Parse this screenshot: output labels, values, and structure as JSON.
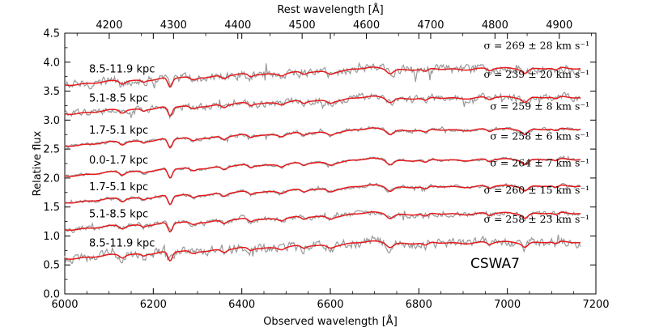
{
  "chart_data": {
    "type": "line",
    "object_name": "CSWA7",
    "xlabel": "Observed wavelength [Å]",
    "ylabel": "Relative flux",
    "top_xlabel": "Rest wavelength [Å]",
    "xlim": [
      6000,
      7200
    ],
    "ylim": [
      0.0,
      4.5
    ],
    "x_ticks": [
      "6000",
      "6200",
      "6400",
      "6600",
      "6800",
      "7000",
      "7200"
    ],
    "y_ticks": [
      "0.0",
      "0.5",
      "1.0",
      "1.5",
      "2.0",
      "2.5",
      "3.0",
      "3.5",
      "4.0",
      "4.5"
    ],
    "top_ticks": [
      "4200",
      "4300",
      "4400",
      "4500",
      "4600",
      "4700",
      "4800",
      "4900"
    ],
    "rest_to_observed_factor": 1.4525,
    "series_colors": {
      "observed": "#999999",
      "model": "#e41a1c"
    },
    "spectra": [
      {
        "region": "8.5-11.9 kpc",
        "sigma": "σ = 269 ± 28 km s⁻¹",
        "offset": 3.55,
        "noise": 0.07
      },
      {
        "region": "5.1-8.5 kpc",
        "sigma": "σ = 239 ± 20 km s⁻¹",
        "offset": 3.05,
        "noise": 0.05
      },
      {
        "region": "1.7-5.1 kpc",
        "sigma": "σ = 259 ± 8 km s⁻¹",
        "offset": 2.5,
        "noise": 0.025
      },
      {
        "region": "0.0-1.7 kpc",
        "sigma": "σ = 258 ± 6 km s⁻¹",
        "offset": 1.98,
        "noise": 0.02
      },
      {
        "region": "1.7-5.1 kpc",
        "sigma": "σ = 264 ± 7 km s⁻¹",
        "offset": 1.52,
        "noise": 0.025
      },
      {
        "region": "5.1-8.5 kpc",
        "sigma": "σ = 260 ± 15 km s⁻¹",
        "offset": 1.05,
        "noise": 0.04
      },
      {
        "region": "8.5-11.9 kpc",
        "sigma": "σ = 258 ± 23 km s⁻¹",
        "offset": 0.55,
        "noise": 0.07
      }
    ]
  }
}
